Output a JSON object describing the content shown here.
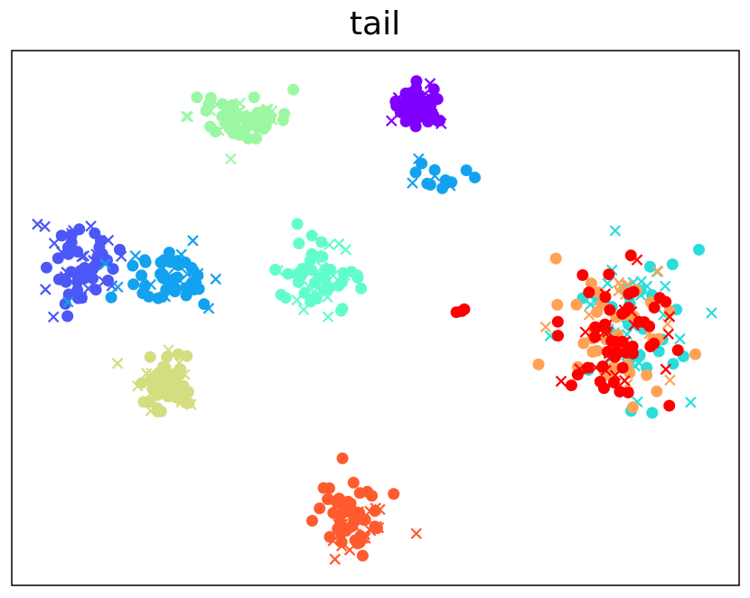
{
  "chart_data": {
    "type": "scatter",
    "title": "tail",
    "xlabel": "",
    "ylabel": "",
    "axes_ticks": false,
    "grid": false,
    "legend": "none",
    "marker_types": [
      "circle",
      "x"
    ],
    "series": [
      {
        "color": "#8000ff",
        "clusters": [
          {
            "cx": 465,
            "cy": 118,
            "sx": 22,
            "sy": 18,
            "n_circle": 45,
            "n_x": 12
          }
        ]
      },
      {
        "color": "#4b57f6",
        "clusters": [
          {
            "cx": 88,
            "cy": 290,
            "sx": 35,
            "sy": 40,
            "n_circle": 40,
            "n_x": 22
          }
        ]
      },
      {
        "color": "#12a2ef",
        "clusters": [
          {
            "cx": 185,
            "cy": 310,
            "sx": 45,
            "sy": 30,
            "n_circle": 40,
            "n_x": 20
          },
          {
            "cx": 485,
            "cy": 200,
            "sx": 30,
            "sy": 15,
            "n_circle": 10,
            "n_x": 4
          }
        ]
      },
      {
        "color": "#2adddd",
        "clusters": [
          {
            "cx": 700,
            "cy": 360,
            "sx": 45,
            "sy": 70,
            "n_circle": 30,
            "n_x": 30
          }
        ]
      },
      {
        "color": "#63fccd",
        "clusters": [
          {
            "cx": 355,
            "cy": 305,
            "sx": 42,
            "sy": 28,
            "n_circle": 40,
            "n_x": 16
          }
        ]
      },
      {
        "color": "#9cf7a3",
        "clusters": [
          {
            "cx": 268,
            "cy": 130,
            "sx": 42,
            "sy": 20,
            "n_circle": 45,
            "n_x": 18
          }
        ]
      },
      {
        "color": "#d4dd80",
        "clusters": [
          {
            "cx": 182,
            "cy": 420,
            "sx": 28,
            "sy": 28,
            "n_circle": 45,
            "n_x": 16
          }
        ]
      },
      {
        "color": "#ffa256",
        "clusters": [
          {
            "cx": 690,
            "cy": 370,
            "sx": 55,
            "sy": 55,
            "n_circle": 40,
            "n_x": 14
          }
        ]
      },
      {
        "color": "#ff5b2e",
        "clusters": [
          {
            "cx": 390,
            "cy": 575,
            "sx": 32,
            "sy": 28,
            "n_circle": 45,
            "n_x": 22
          }
        ]
      },
      {
        "color": "#ff0000",
        "clusters": [
          {
            "cx": 680,
            "cy": 370,
            "sx": 50,
            "sy": 65,
            "n_circle": 45,
            "n_x": 25
          },
          {
            "cx": 510,
            "cy": 345,
            "sx": 8,
            "sy": 8,
            "n_circle": 3,
            "n_x": 0
          }
        ]
      }
    ]
  }
}
